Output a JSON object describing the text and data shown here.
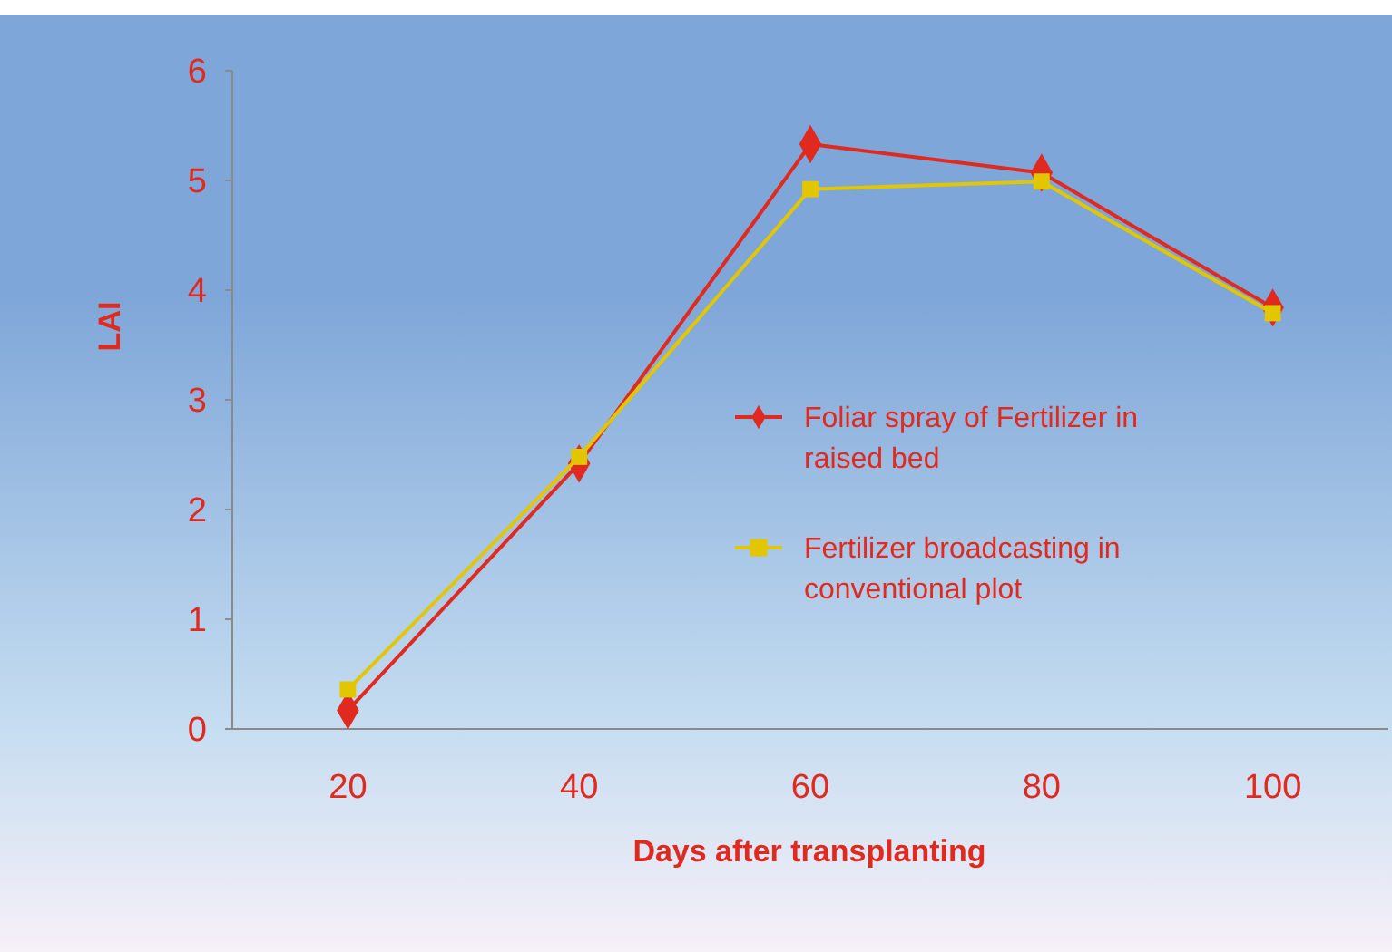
{
  "chart_data": {
    "type": "line",
    "xlabel": "Days after transplanting",
    "ylabel": "LAI",
    "categories": [
      "20",
      "40",
      "60",
      "80",
      "100"
    ],
    "series": [
      {
        "name": "Foliar spray of Fertilizer in raised bed",
        "color": "#e02a20",
        "marker": "diamond",
        "values": [
          0.17,
          2.42,
          5.33,
          5.07,
          3.84
        ]
      },
      {
        "name": "Fertilizer broadcasting in conventional plot",
        "color": "#e2c600",
        "marker": "square",
        "values": [
          0.36,
          2.48,
          4.92,
          4.99,
          3.79
        ]
      }
    ],
    "ylim": [
      0,
      6
    ],
    "yticks": [
      0,
      1,
      2,
      3,
      4,
      5,
      6
    ],
    "grid": false,
    "legend": "center",
    "line_style": "solid"
  }
}
